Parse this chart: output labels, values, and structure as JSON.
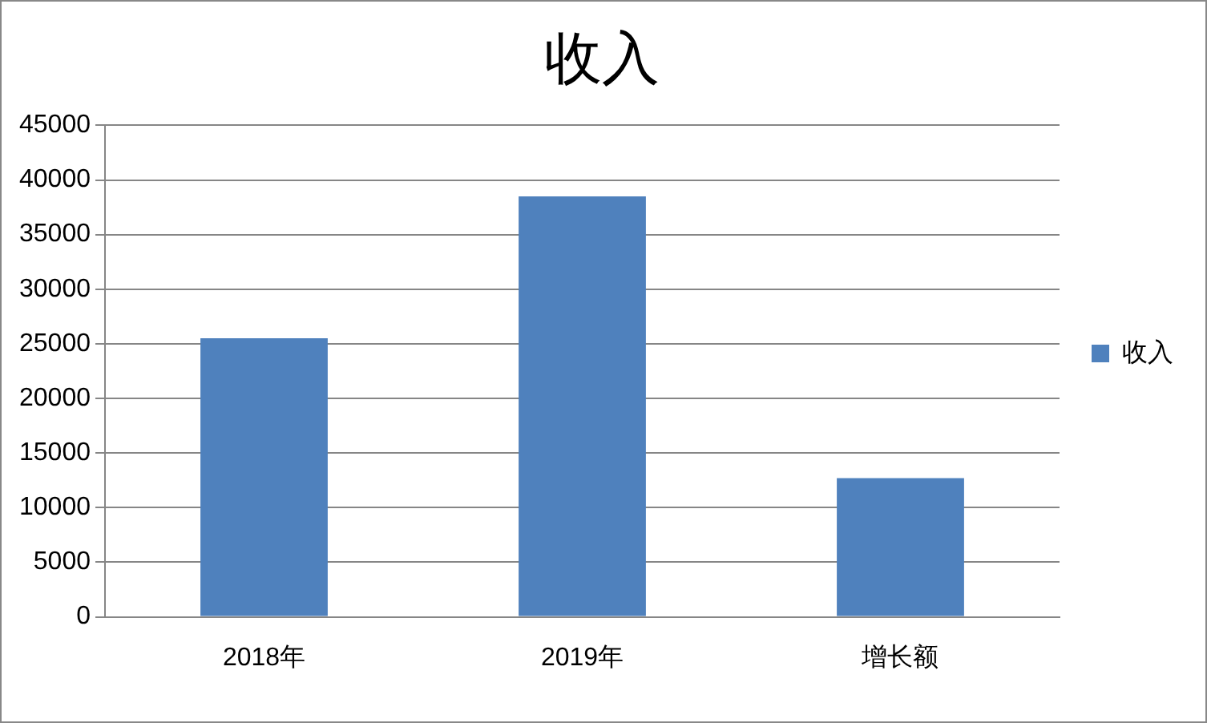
{
  "chart_data": {
    "type": "bar",
    "title": "收入",
    "categories": [
      "2018年",
      "2019年",
      "增长额"
    ],
    "series": [
      {
        "name": "收入",
        "color": "#4f81bd",
        "values": [
          25500,
          38500,
          12700
        ]
      }
    ],
    "ylim": [
      0,
      45000
    ],
    "yticks": [
      0,
      5000,
      10000,
      15000,
      20000,
      25000,
      30000,
      35000,
      40000,
      45000
    ],
    "grid": "y",
    "legend": "right"
  }
}
